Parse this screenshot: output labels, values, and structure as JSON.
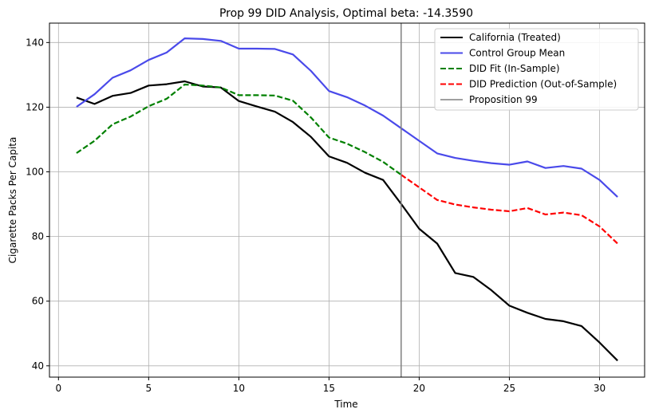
{
  "chart_data": {
    "type": "line",
    "title": "Prop 99 DID Analysis, Optimal beta: -14.3590",
    "xlabel": "Time",
    "ylabel": "Cigarette Packs Per Capita",
    "xlim": [
      -0.5,
      32.5
    ],
    "ylim": [
      36.5,
      146
    ],
    "xticks": [
      0,
      5,
      10,
      15,
      20,
      25,
      30
    ],
    "yticks": [
      40,
      60,
      80,
      100,
      120,
      140
    ],
    "grid": true,
    "legend_position": "top-right",
    "series": [
      {
        "name": "California (Treated)",
        "color": "#000000",
        "style": "solid",
        "x": [
          1,
          2,
          3,
          4,
          5,
          6,
          7,
          8,
          9,
          10,
          11,
          12,
          13,
          14,
          15,
          16,
          17,
          18,
          19,
          20,
          21,
          22,
          23,
          24,
          25,
          26,
          27,
          28,
          29,
          30,
          31
        ],
        "values": [
          123.0,
          121.0,
          123.5,
          124.4,
          126.7,
          127.1,
          128.0,
          126.4,
          126.1,
          121.9,
          120.2,
          118.6,
          115.4,
          110.8,
          104.8,
          102.8,
          99.7,
          97.5,
          90.1,
          82.4,
          77.8,
          68.7,
          67.5,
          63.4,
          58.6,
          56.4,
          54.5,
          53.8,
          52.3,
          47.2,
          41.6
        ]
      },
      {
        "name": "Control Group Mean",
        "color": "#4a4aea",
        "style": "solid",
        "x": [
          1,
          2,
          3,
          4,
          5,
          6,
          7,
          8,
          9,
          10,
          11,
          12,
          13,
          14,
          15,
          16,
          17,
          18,
          19,
          20,
          21,
          22,
          23,
          24,
          25,
          26,
          27,
          28,
          29,
          30,
          31
        ],
        "values": [
          120.1,
          124.0,
          129.1,
          131.4,
          134.6,
          136.9,
          141.3,
          141.1,
          140.5,
          138.1,
          138.1,
          138.0,
          136.3,
          131.2,
          125.0,
          123.1,
          120.5,
          117.4,
          113.5,
          109.6,
          105.7,
          104.3,
          103.4,
          102.7,
          102.2,
          103.2,
          101.2,
          101.8,
          101.0,
          97.5,
          92.2
        ]
      },
      {
        "name": "DID Fit (In-Sample)",
        "color": "#008000",
        "style": "dashed",
        "x": [
          1,
          2,
          3,
          4,
          5,
          6,
          7,
          8,
          9,
          10,
          11,
          12,
          13,
          14,
          15,
          16,
          17,
          18,
          19
        ],
        "values": [
          105.8,
          109.6,
          114.7,
          117.1,
          120.3,
          122.6,
          127.0,
          126.7,
          126.1,
          123.7,
          123.7,
          123.6,
          122.0,
          116.8,
          110.6,
          108.7,
          106.1,
          103.1,
          99.1
        ]
      },
      {
        "name": "DID Prediction (Out-of-Sample)",
        "color": "#ff0000",
        "style": "dashed",
        "x": [
          19,
          20,
          21,
          22,
          23,
          24,
          25,
          26,
          27,
          28,
          29,
          30,
          31
        ],
        "values": [
          99.1,
          95.2,
          91.3,
          89.9,
          89.0,
          88.3,
          87.8,
          88.8,
          86.8,
          87.4,
          86.6,
          83.1,
          77.8
        ]
      }
    ],
    "vlines": [
      {
        "name": "Proposition 99",
        "x": 19,
        "color": "#808080"
      }
    ]
  }
}
